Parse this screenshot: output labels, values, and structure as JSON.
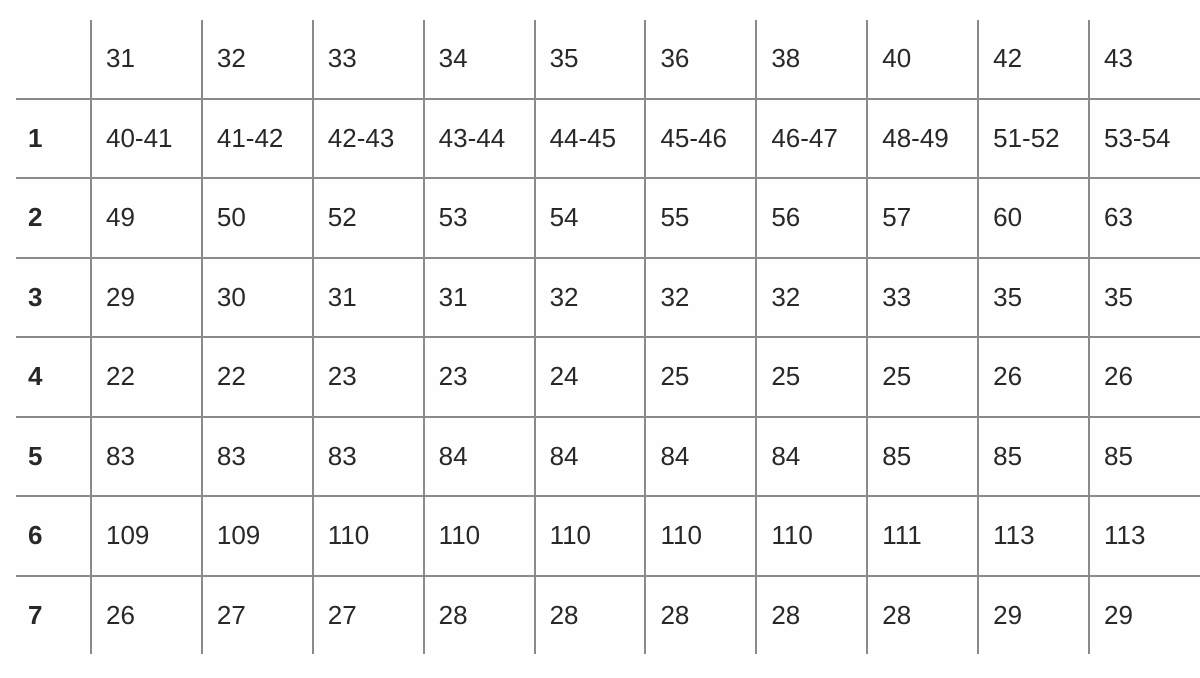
{
  "colors": {
    "grid_line": "#8a8a8a",
    "text": "#282828",
    "background": "#ffffff"
  },
  "table": {
    "corner_label": "",
    "column_headers": [
      "31",
      "32",
      "33",
      "34",
      "35",
      "36",
      "38",
      "40",
      "42",
      "43"
    ],
    "rows": [
      {
        "label": "1",
        "values": [
          "40-41",
          "41-42",
          "42-43",
          "43-44",
          "44-45",
          "45-46",
          "46-47",
          "48-49",
          "51-52",
          "53-54"
        ]
      },
      {
        "label": "2",
        "values": [
          "49",
          "50",
          "52",
          "53",
          "54",
          "55",
          "56",
          "57",
          "60",
          "63"
        ]
      },
      {
        "label": "3",
        "values": [
          "29",
          "30",
          "31",
          "31",
          "32",
          "32",
          "32",
          "33",
          "35",
          "35"
        ]
      },
      {
        "label": "4",
        "values": [
          "22",
          "22",
          "23",
          "23",
          "24",
          "25",
          "25",
          "25",
          "26",
          "26"
        ]
      },
      {
        "label": "5",
        "values": [
          "83",
          "83",
          "83",
          "84",
          "84",
          "84",
          "84",
          "85",
          "85",
          "85"
        ]
      },
      {
        "label": "6",
        "values": [
          "109",
          "109",
          "110",
          "110",
          "110",
          "110",
          "110",
          "111",
          "113",
          "113"
        ]
      },
      {
        "label": "7",
        "values": [
          "26",
          "27",
          "27",
          "28",
          "28",
          "28",
          "28",
          "28",
          "29",
          "29"
        ]
      }
    ]
  },
  "chart_data": {
    "type": "table",
    "title": "",
    "column_headers": [
      "31",
      "32",
      "33",
      "34",
      "35",
      "36",
      "38",
      "40",
      "42",
      "43"
    ],
    "row_labels": [
      "1",
      "2",
      "3",
      "4",
      "5",
      "6",
      "7"
    ],
    "cells": [
      [
        "40-41",
        "41-42",
        "42-43",
        "43-44",
        "44-45",
        "45-46",
        "46-47",
        "48-49",
        "51-52",
        "53-54"
      ],
      [
        "49",
        "50",
        "52",
        "53",
        "54",
        "55",
        "56",
        "57",
        "60",
        "63"
      ],
      [
        "29",
        "30",
        "31",
        "31",
        "32",
        "32",
        "32",
        "33",
        "35",
        "35"
      ],
      [
        "22",
        "22",
        "23",
        "23",
        "24",
        "25",
        "25",
        "25",
        "26",
        "26"
      ],
      [
        "83",
        "83",
        "83",
        "84",
        "84",
        "84",
        "84",
        "85",
        "85",
        "85"
      ],
      [
        "109",
        "109",
        "110",
        "110",
        "110",
        "110",
        "110",
        "111",
        "113",
        "113"
      ],
      [
        "26",
        "27",
        "27",
        "28",
        "28",
        "28",
        "28",
        "28",
        "29",
        "29"
      ]
    ],
    "layout": {
      "grid": true,
      "outer_border": false,
      "label_column_bold": true
    }
  }
}
